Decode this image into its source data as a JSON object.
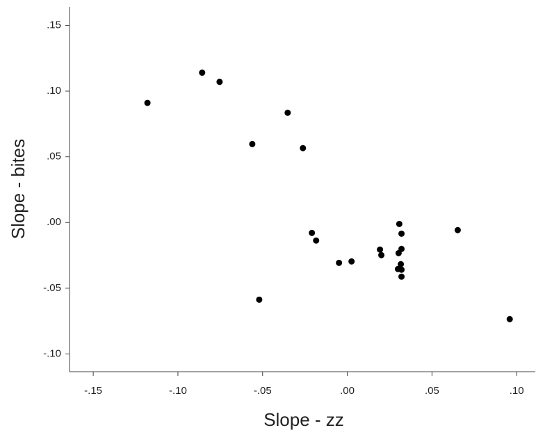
{
  "chart_data": {
    "type": "scatter",
    "x_label": "Slope - zz",
    "y_label": "Slope - bites",
    "color": "#000000",
    "xlim": [
      -0.164,
      0.111
    ],
    "ylim": [
      -0.1135,
      0.164
    ],
    "xticks": [
      {
        "value": -0.15,
        "label": "-.15"
      },
      {
        "value": -0.1,
        "label": "-.10"
      },
      {
        "value": -0.05,
        "label": "-.05"
      },
      {
        "value": 0,
        "label": ".00"
      },
      {
        "value": 0.05,
        "label": ".05"
      },
      {
        "value": 0.1,
        "label": ".10"
      }
    ],
    "yticks": [
      {
        "value": -0.1,
        "label": "-.10"
      },
      {
        "value": -0.05,
        "label": "-.05"
      },
      {
        "value": 0,
        "label": ".00"
      },
      {
        "value": 0.05,
        "label": ".05"
      },
      {
        "value": 0.1,
        "label": ".10"
      },
      {
        "value": 0.15,
        "label": ".15"
      }
    ],
    "x": [
      -0.118,
      -0.0857,
      -0.0754,
      -0.0352,
      -0.0561,
      -0.0262,
      -0.0209,
      -0.0184,
      -0.0049,
      0.0025,
      0.0193,
      0.0201,
      0.0307,
      0.032,
      0.032,
      0.0303,
      0.0316,
      0.0299,
      0.032,
      0.032,
      -0.052,
      0.0652,
      0.0959
    ],
    "y": [
      0.091,
      0.114,
      0.107,
      0.0835,
      0.0597,
      0.0566,
      -0.0079,
      -0.0137,
      -0.0307,
      -0.0296,
      -0.0206,
      -0.0248,
      -0.0011,
      -0.0085,
      -0.0201,
      -0.0233,
      -0.0317,
      -0.0354,
      -0.0359,
      -0.0412,
      -0.0587,
      -0.0058,
      -0.0735
    ]
  }
}
